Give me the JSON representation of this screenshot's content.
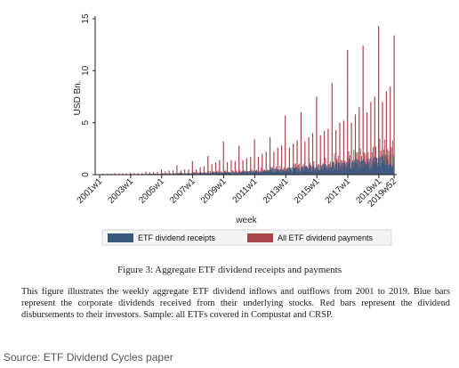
{
  "chart_data": {
    "type": "bar",
    "title": "",
    "xlabel": "week",
    "ylabel": "USD Bn.",
    "ylim": [
      0,
      15
    ],
    "yticks": [
      0,
      5,
      10,
      15
    ],
    "xticks": [
      "2001w1",
      "2003w1",
      "2005w1",
      "2007w1",
      "2009w1",
      "2011w1",
      "2013w1",
      "2015w1",
      "2017w1",
      "2019w1",
      "2019w52"
    ],
    "legend_position": "bottom",
    "grid": false,
    "series": [
      {
        "name": "ETF dividend receipts",
        "color": "#3b5a80",
        "description_years": [
          2001,
          2002,
          2003,
          2004,
          2005,
          2006,
          2007,
          2008,
          2009,
          2010,
          2011,
          2012,
          2013,
          2014,
          2015,
          2016,
          2017,
          2018,
          2019
        ],
        "typical_weekly_max": [
          0.02,
          0.03,
          0.05,
          0.08,
          0.12,
          0.16,
          0.22,
          0.28,
          0.3,
          0.38,
          0.5,
          0.62,
          0.78,
          0.95,
          1.1,
          1.3,
          1.55,
          1.8,
          2.1
        ]
      },
      {
        "name": "All ETF dividend payments",
        "color": "#a8464d",
        "quarterly_spikes": [
          {
            "x": "2001w13",
            "y": 0.1
          },
          {
            "x": "2001w26",
            "y": 0.1
          },
          {
            "x": "2001w39",
            "y": 0.1
          },
          {
            "x": "2001w52",
            "y": 0.15
          },
          {
            "x": "2002w13",
            "y": 0.12
          },
          {
            "x": "2002w26",
            "y": 0.12
          },
          {
            "x": "2002w39",
            "y": 0.12
          },
          {
            "x": "2002w52",
            "y": 0.2
          },
          {
            "x": "2003w13",
            "y": 0.15
          },
          {
            "x": "2003w26",
            "y": 0.15
          },
          {
            "x": "2003w39",
            "y": 0.15
          },
          {
            "x": "2003w52",
            "y": 0.3
          },
          {
            "x": "2004w13",
            "y": 0.2
          },
          {
            "x": "2004w26",
            "y": 0.25
          },
          {
            "x": "2004w39",
            "y": 0.25
          },
          {
            "x": "2004w52",
            "y": 0.5
          },
          {
            "x": "2005w13",
            "y": 0.3
          },
          {
            "x": "2005w26",
            "y": 0.4
          },
          {
            "x": "2005w39",
            "y": 0.4
          },
          {
            "x": "2005w52",
            "y": 0.9
          },
          {
            "x": "2006w13",
            "y": 0.4
          },
          {
            "x": "2006w26",
            "y": 0.5
          },
          {
            "x": "2006w39",
            "y": 0.5
          },
          {
            "x": "2006w52",
            "y": 1.3
          },
          {
            "x": "2007w13",
            "y": 0.5
          },
          {
            "x": "2007w26",
            "y": 0.7
          },
          {
            "x": "2007w39",
            "y": 0.8
          },
          {
            "x": "2007w52",
            "y": 1.8
          },
          {
            "x": "2008w13",
            "y": 1.0
          },
          {
            "x": "2008w26",
            "y": 1.2
          },
          {
            "x": "2008w39",
            "y": 1.4
          },
          {
            "x": "2008w52",
            "y": 3.2
          },
          {
            "x": "2009w13",
            "y": 1.2
          },
          {
            "x": "2009w26",
            "y": 1.4
          },
          {
            "x": "2009w39",
            "y": 1.3
          },
          {
            "x": "2009w52",
            "y": 2.8
          },
          {
            "x": "2010w13",
            "y": 1.4
          },
          {
            "x": "2010w26",
            "y": 1.6
          },
          {
            "x": "2010w39",
            "y": 1.7
          },
          {
            "x": "2010w52",
            "y": 3.4
          },
          {
            "x": "2011w13",
            "y": 1.7
          },
          {
            "x": "2011w26",
            "y": 2.0
          },
          {
            "x": "2011w39",
            "y": 2.2
          },
          {
            "x": "2011w52",
            "y": 3.6
          },
          {
            "x": "2012w13",
            "y": 2.2
          },
          {
            "x": "2012w26",
            "y": 2.6
          },
          {
            "x": "2012w39",
            "y": 2.8
          },
          {
            "x": "2012w51",
            "y": 5.7
          },
          {
            "x": "2013w13",
            "y": 2.6
          },
          {
            "x": "2013w26",
            "y": 3.0
          },
          {
            "x": "2013w39",
            "y": 3.3
          },
          {
            "x": "2013w52",
            "y": 6.0
          },
          {
            "x": "2014w13",
            "y": 3.2
          },
          {
            "x": "2014w26",
            "y": 3.6
          },
          {
            "x": "2014w39",
            "y": 4.0
          },
          {
            "x": "2014w52",
            "y": 7.5
          },
          {
            "x": "2015w13",
            "y": 3.8
          },
          {
            "x": "2015w26",
            "y": 4.2
          },
          {
            "x": "2015w39",
            "y": 4.4
          },
          {
            "x": "2015w52",
            "y": 8.8
          },
          {
            "x": "2016w13",
            "y": 4.3
          },
          {
            "x": "2016w26",
            "y": 5.0
          },
          {
            "x": "2016w39",
            "y": 5.2
          },
          {
            "x": "2016w52",
            "y": 12.0
          },
          {
            "x": "2017w13",
            "y": 5.0
          },
          {
            "x": "2017w26",
            "y": 5.8
          },
          {
            "x": "2017w39",
            "y": 6.5
          },
          {
            "x": "2017w52",
            "y": 12.4
          },
          {
            "x": "2018w13",
            "y": 6.0
          },
          {
            "x": "2018w26",
            "y": 7.0
          },
          {
            "x": "2018w39",
            "y": 7.5
          },
          {
            "x": "2018w52",
            "y": 14.3
          },
          {
            "x": "2019w13",
            "y": 7.0
          },
          {
            "x": "2019w26",
            "y": 8.0
          },
          {
            "x": "2019w39",
            "y": 8.5
          },
          {
            "x": "2019w52",
            "y": 13.4
          }
        ],
        "monthly_spikes_typical_max": [
          0.05,
          0.06,
          0.08,
          0.1,
          0.15,
          0.2,
          0.3,
          0.4,
          0.45,
          0.55,
          0.7,
          0.9,
          1.1,
          1.4,
          1.7,
          2.1,
          2.6,
          3.0,
          3.5
        ]
      }
    ]
  },
  "figure_caption": "Figure 3:  Aggregate ETF dividend receipts and payments",
  "figure_description": "This figure illustrates the weekly aggregate ETF dividend inflows and outflows from 2001 to 2019. Blue bars represent the corporate dividends received from their underlying stocks. Red bars represent the dividend disbursements to their investors. Sample: all ETFs covered in Compustat and CRSP.",
  "source": "Source: ETF Dividend Cycles paper"
}
